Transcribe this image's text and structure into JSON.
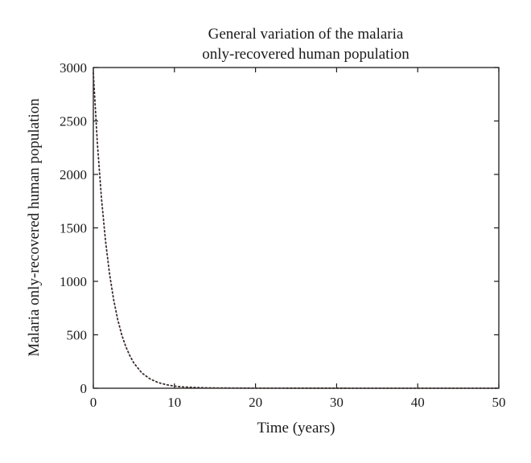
{
  "chart_data": {
    "type": "line",
    "title": "General variation of the malaria\nonly-recovered human population",
    "title_lines": [
      "General variation of the malaria",
      "only-recovered human population"
    ],
    "xlabel": "Time (years)",
    "ylabel": "Malaria only-recovered human population",
    "xlim": [
      0,
      50
    ],
    "ylim": [
      0,
      3000
    ],
    "xticks": [
      0,
      10,
      20,
      30,
      40,
      50
    ],
    "xtick_labels": [
      "0",
      "10",
      "20",
      "30",
      "40",
      "50"
    ],
    "yticks": [
      0,
      500,
      1000,
      1500,
      2000,
      2500,
      3000
    ],
    "ytick_labels": [
      "0",
      "500",
      "1000",
      "1500",
      "2000",
      "2500",
      "3000"
    ],
    "grid": false,
    "line_color": "#3a2a2a",
    "series": [
      {
        "line_style": "dotted",
        "x": [
          0,
          0.5,
          1,
          1.5,
          2,
          2.5,
          3,
          3.5,
          4,
          4.5,
          5,
          6,
          7,
          8,
          9,
          10,
          11,
          12,
          13,
          14,
          15,
          17,
          20,
          25,
          30,
          35,
          40,
          45,
          50
        ],
        "y": [
          2950,
          2290,
          1780,
          1380,
          1070,
          830,
          645,
          500,
          390,
          305,
          235,
          142,
          87,
          53,
          33,
          20,
          13,
          9,
          6,
          4,
          3,
          2,
          1,
          0.5,
          0.3,
          0.2,
          0.1,
          0.1,
          0.1
        ]
      }
    ]
  }
}
